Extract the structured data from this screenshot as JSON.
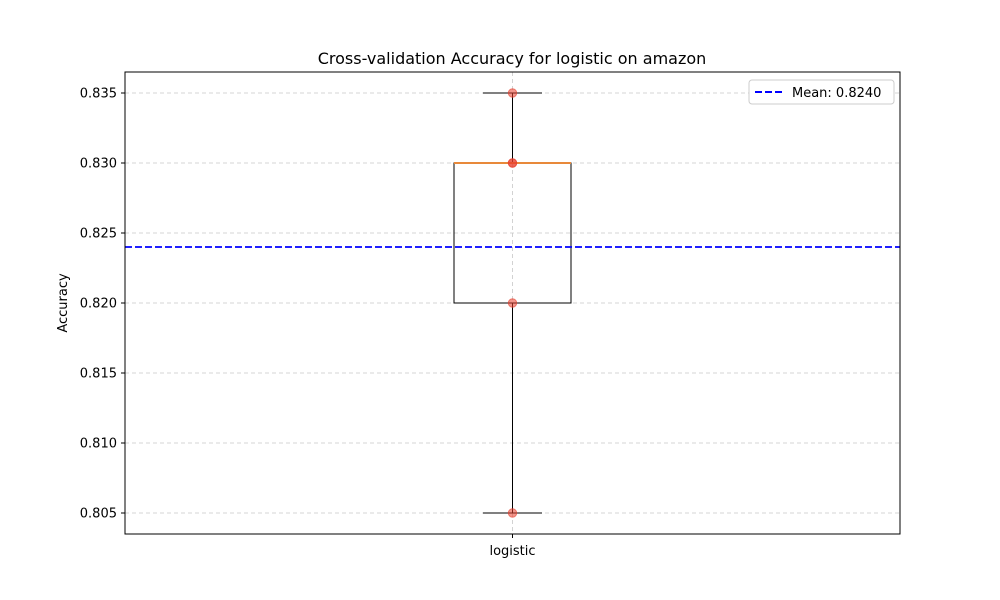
{
  "chart_data": {
    "type": "box",
    "title": "Cross-validation Accuracy for logistic on amazon",
    "xlabel": "",
    "ylabel": "Accuracy",
    "ylim": [
      0.8035,
      0.8365
    ],
    "yticks": [
      0.805,
      0.81,
      0.815,
      0.82,
      0.825,
      0.83,
      0.835
    ],
    "ytick_labels": [
      "0.805",
      "0.810",
      "0.815",
      "0.820",
      "0.825",
      "0.830",
      "0.835"
    ],
    "categories": [
      "logistic"
    ],
    "grid": true,
    "legend_position": "top-right",
    "box": {
      "category": "logistic",
      "whisker_low": 0.805,
      "q1": 0.82,
      "median": 0.83,
      "q3": 0.83,
      "whisker_high": 0.835
    },
    "points": [
      0.805,
      0.82,
      0.83,
      0.83,
      0.835
    ],
    "mean_line": {
      "value": 0.824,
      "label": "Mean: 0.8240"
    },
    "colors": {
      "box": "#000000",
      "median": "#e8893a",
      "points": "#e8402e",
      "mean": "#0000ff",
      "grid": "#c8c8c8"
    }
  }
}
